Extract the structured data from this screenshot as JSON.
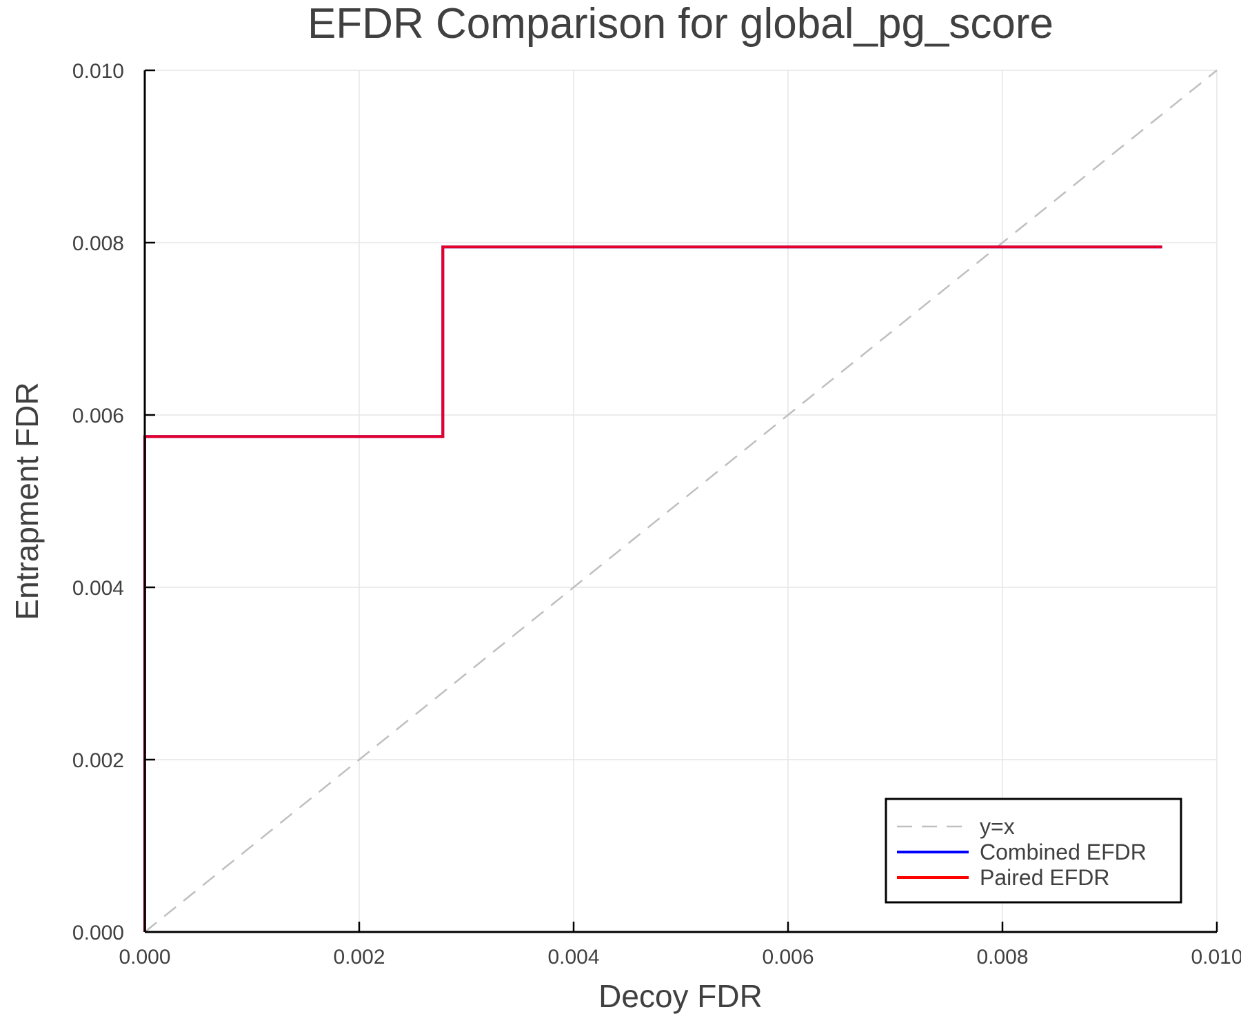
{
  "chart_data": {
    "type": "line",
    "title": "EFDR Comparison for global_pg_score",
    "xlabel": "Decoy FDR",
    "ylabel": "Entrapment FDR",
    "xlim": [
      0.0,
      0.01
    ],
    "ylim": [
      0.0,
      0.01
    ],
    "xticks": [
      "0.000",
      "0.002",
      "0.004",
      "0.006",
      "0.008",
      "0.010"
    ],
    "yticks": [
      "0.000",
      "0.002",
      "0.004",
      "0.006",
      "0.008",
      "0.010"
    ],
    "grid": true,
    "legend_position": "lower right",
    "series": [
      {
        "name": "y=x",
        "style": "dashed",
        "color": "#bfbfbf",
        "x": [
          0.0,
          0.01
        ],
        "y": [
          0.0,
          0.01
        ]
      },
      {
        "name": "Combined EFDR",
        "style": "step",
        "color": "#0000ff",
        "x": [
          0.0,
          0.0,
          0.00278,
          0.00278,
          0.00949
        ],
        "y": [
          0.0,
          0.00575,
          0.00575,
          0.00795,
          0.00795
        ]
      },
      {
        "name": "Paired EFDR",
        "style": "step",
        "color": "#ff0000",
        "x": [
          0.0,
          0.0,
          0.00278,
          0.00278,
          0.00949
        ],
        "y": [
          0.0,
          0.00575,
          0.00575,
          0.00795,
          0.00795
        ]
      }
    ]
  }
}
